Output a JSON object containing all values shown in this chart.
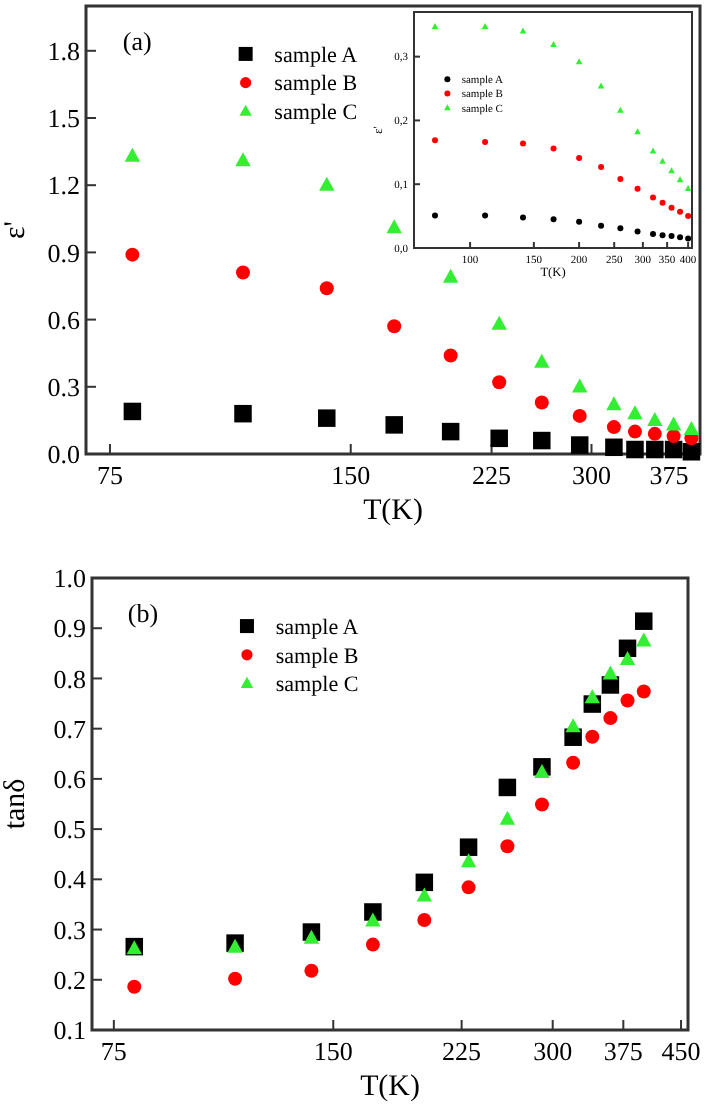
{
  "chart_data": [
    {
      "type": "scatter",
      "ylabel": "ε'",
      "xlabel": "T(K)",
      "annotations": [
        "(a)"
      ],
      "log": "x",
      "xlim": [
        70,
        410
      ],
      "xticks": [
        75,
        150,
        225,
        300,
        375
      ],
      "ylim": [
        0,
        2.0
      ],
      "yticks": [
        {
          "value": 0,
          "label": "0.0"
        },
        0.3,
        0.6,
        0.9,
        1.2,
        1.5,
        1.8
      ],
      "legend": "top",
      "x": [
        80,
        110,
        140,
        170,
        200,
        230,
        260,
        290,
        320,
        340,
        360,
        380,
        400
      ],
      "series": [
        {
          "name": "sample A",
          "color": "#000000",
          "marker": "square",
          "values": [
            0.19,
            0.18,
            0.16,
            0.13,
            0.1,
            0.07,
            0.06,
            0.04,
            0.03,
            0.02,
            0.02,
            0.02,
            0.01
          ]
        },
        {
          "name": "sample B",
          "color": "#ff0000",
          "marker": "circle",
          "values": [
            0.89,
            0.81,
            0.74,
            0.57,
            0.44,
            0.32,
            0.23,
            0.17,
            0.12,
            0.1,
            0.09,
            0.08,
            0.07
          ]
        },
        {
          "name": "sample C",
          "color": "#33ee33",
          "marker": "triangle",
          "values": [
            1.33,
            1.31,
            1.2,
            1.01,
            0.79,
            0.58,
            0.41,
            0.3,
            0.22,
            0.18,
            0.15,
            0.13,
            0.11
          ]
        }
      ]
    },
    {
      "type": "scatter",
      "ylabel": "ε'",
      "xlabel": "T(K)",
      "log": "x",
      "xlim": [
        70,
        410
      ],
      "xticks": [
        100,
        150,
        200,
        250,
        300,
        350,
        400
      ],
      "ylim": [
        0,
        0.37
      ],
      "yticks": [
        {
          "value": 0,
          "label": "0,0"
        },
        {
          "value": 0.1,
          "label": "0,1"
        },
        {
          "value": 0.2,
          "label": "0,2"
        },
        {
          "value": 0.3,
          "label": "0,3"
        }
      ],
      "legend": "top left",
      "x": [
        80,
        110,
        140,
        170,
        200,
        230,
        260,
        290,
        320,
        340,
        360,
        380,
        400
      ],
      "series": [
        {
          "name": "sample A",
          "color": "#000000",
          "marker": "circle",
          "values": [
            0.051,
            0.051,
            0.048,
            0.045,
            0.041,
            0.035,
            0.031,
            0.026,
            0.022,
            0.02,
            0.019,
            0.017,
            0.015
          ]
        },
        {
          "name": "sample B",
          "color": "#ff0000",
          "marker": "circle",
          "values": [
            0.169,
            0.166,
            0.164,
            0.156,
            0.141,
            0.127,
            0.108,
            0.093,
            0.079,
            0.071,
            0.063,
            0.057,
            0.05
          ]
        },
        {
          "name": "sample C",
          "color": "#33ee33",
          "marker": "triangle",
          "values": [
            0.347,
            0.347,
            0.34,
            0.319,
            0.292,
            0.254,
            0.216,
            0.182,
            0.152,
            0.136,
            0.121,
            0.107,
            0.093
          ]
        }
      ]
    },
    {
      "type": "scatter",
      "ylabel": "tanδ",
      "xlabel": "T(K)",
      "annotations": [
        "(b)"
      ],
      "log": "x",
      "xlim": [
        70,
        460
      ],
      "xticks": [
        75,
        150,
        225,
        300,
        375,
        450
      ],
      "ylim": [
        0.1,
        1.0
      ],
      "yticks": [
        0.1,
        0.2,
        0.3,
        0.4,
        0.5,
        0.6,
        0.7,
        0.8,
        0.9,
        {
          "value": 1.0,
          "label": "1.0"
        }
      ],
      "legend": "top",
      "x": [
        80,
        110,
        140,
        170,
        200,
        230,
        260,
        290,
        320,
        340,
        360,
        380,
        400
      ],
      "series": [
        {
          "name": "sample A",
          "color": "#000000",
          "marker": "square",
          "values": [
            0.266,
            0.273,
            0.295,
            0.335,
            0.394,
            0.464,
            0.583,
            0.624,
            0.683,
            0.749,
            0.787,
            0.86,
            0.914
          ]
        },
        {
          "name": "sample B",
          "color": "#ff0000",
          "marker": "circle",
          "values": [
            0.186,
            0.202,
            0.218,
            0.27,
            0.319,
            0.384,
            0.466,
            0.549,
            0.632,
            0.684,
            0.721,
            0.756,
            0.774
          ]
        },
        {
          "name": "sample C",
          "color": "#33ee33",
          "marker": "triangle",
          "values": [
            0.262,
            0.265,
            0.283,
            0.317,
            0.367,
            0.435,
            0.52,
            0.613,
            0.704,
            0.762,
            0.809,
            0.838,
            0.875
          ]
        }
      ]
    }
  ]
}
